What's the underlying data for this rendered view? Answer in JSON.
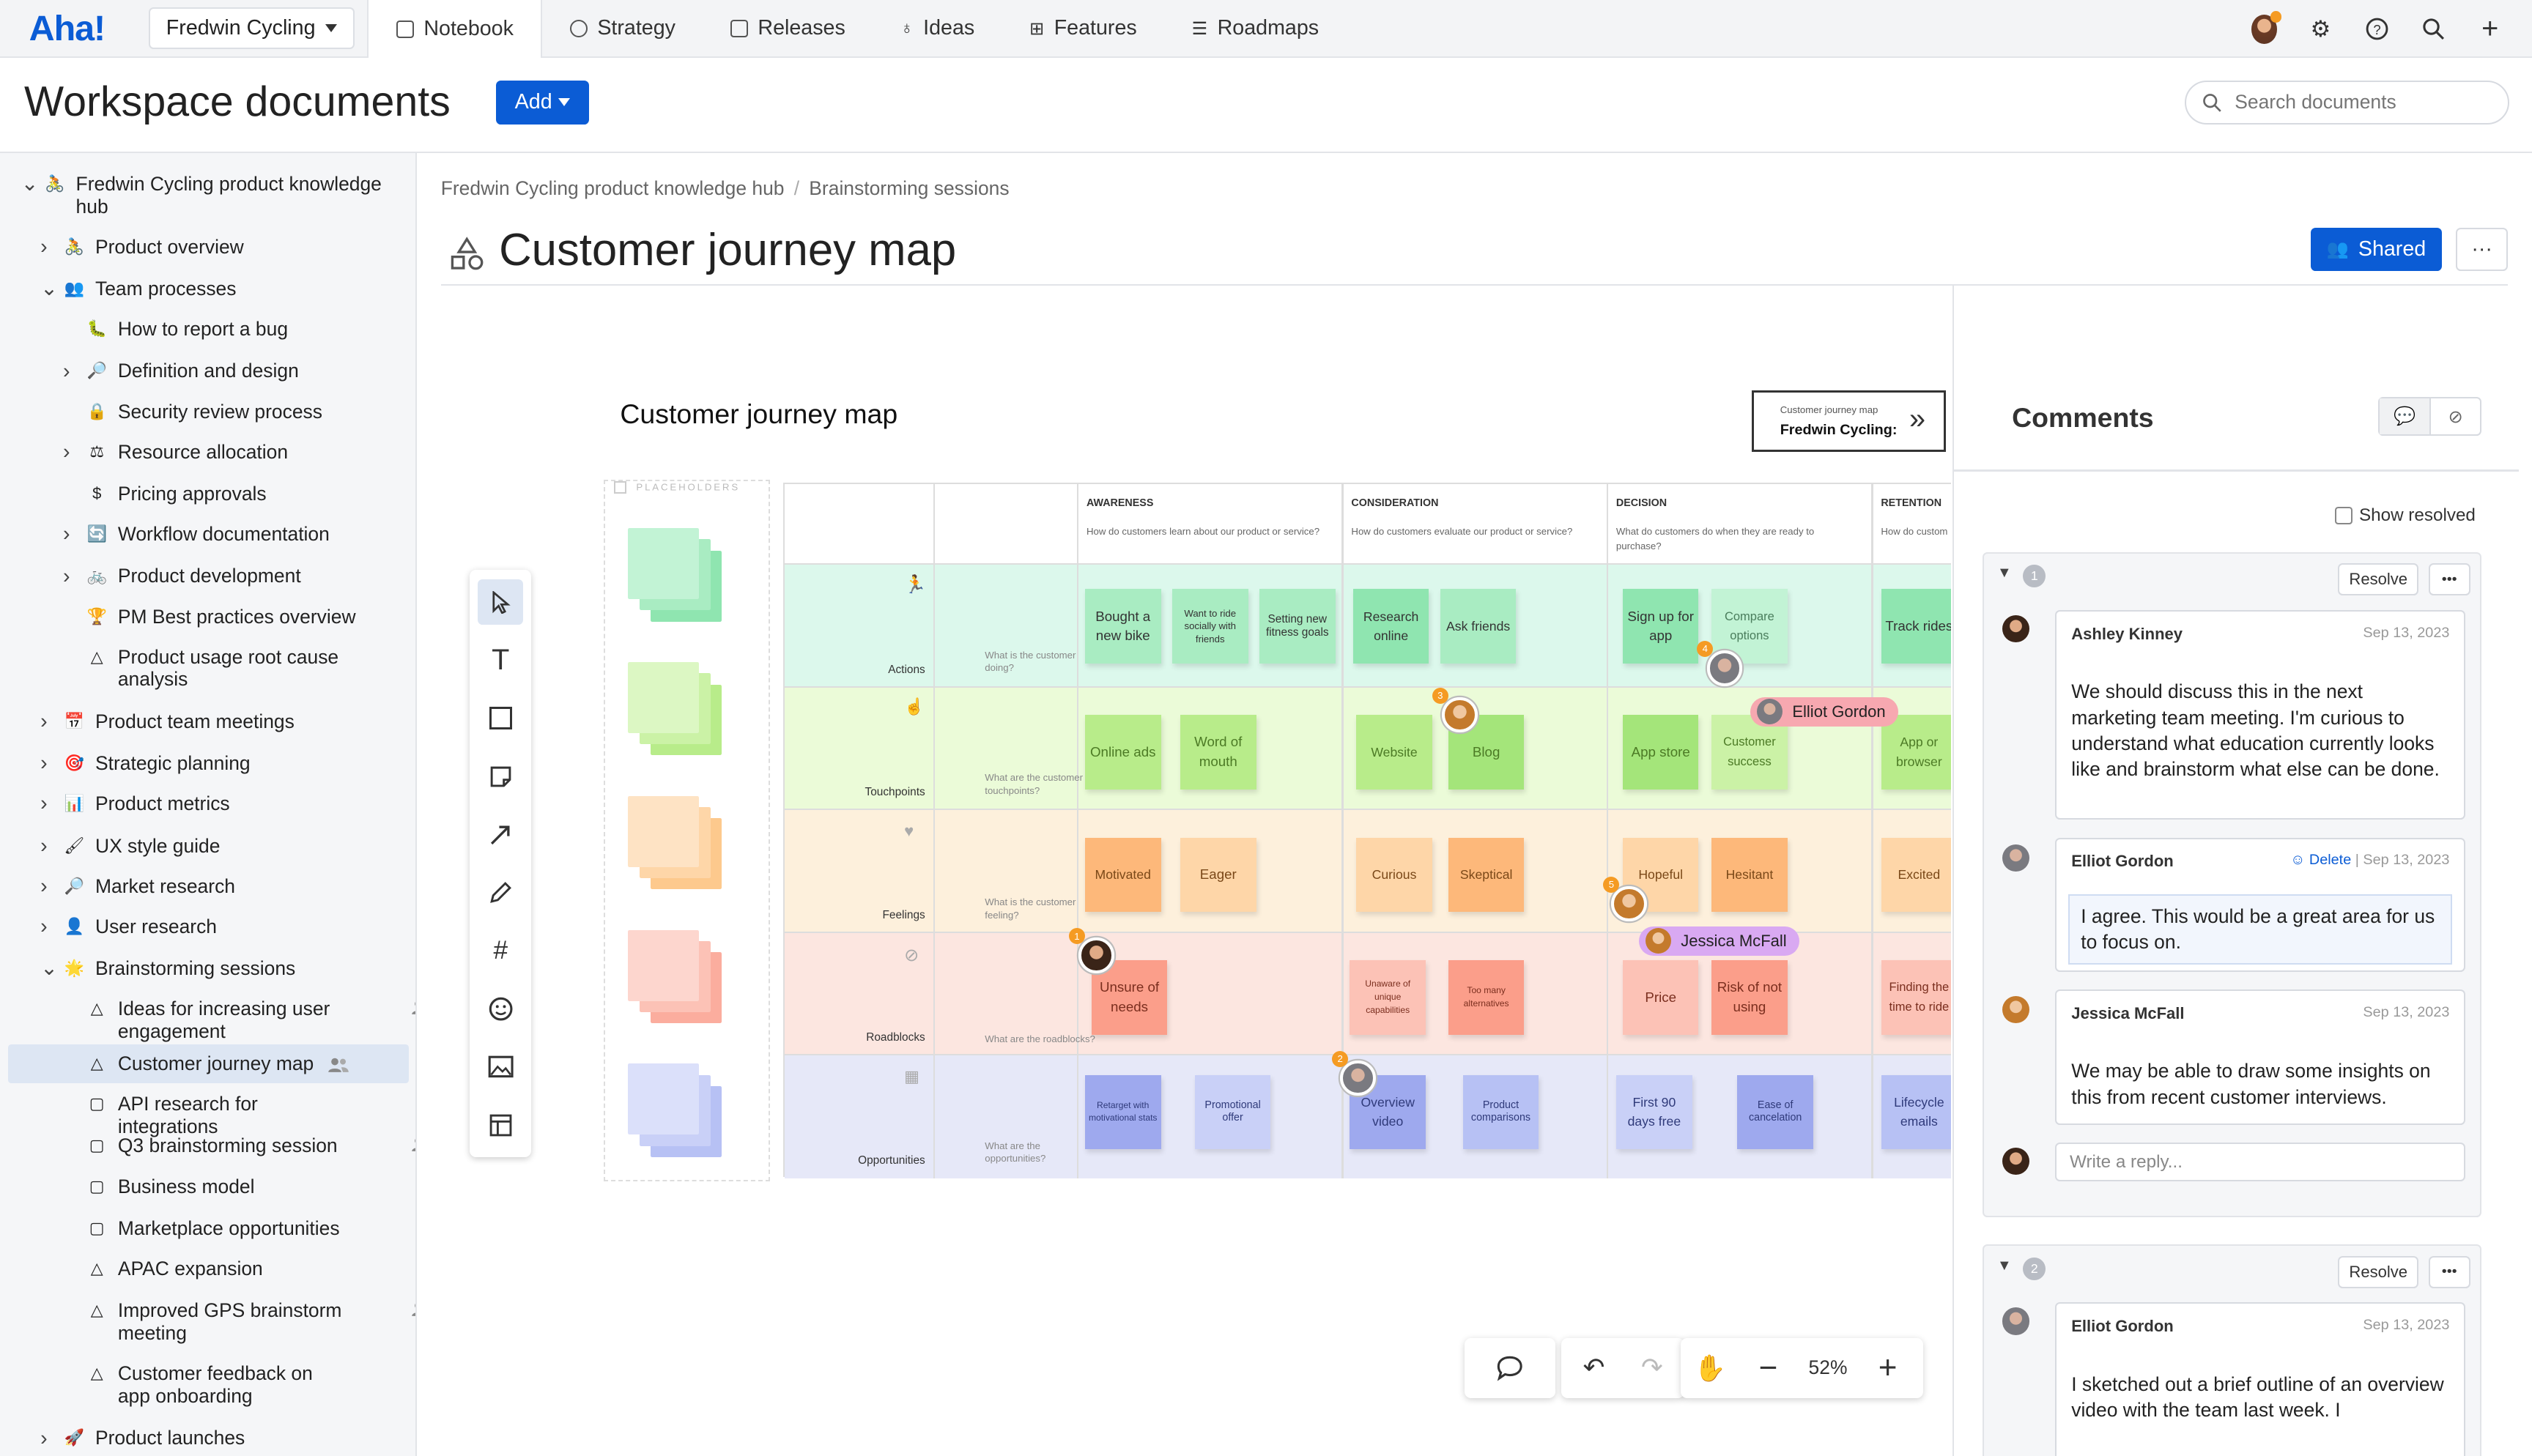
{
  "nav": {
    "logo": "Aha!",
    "workspace": "Fredwin Cycling",
    "tabs": [
      {
        "label": "Notebook"
      },
      {
        "label": "Strategy"
      },
      {
        "label": "Releases"
      },
      {
        "label": "Ideas"
      },
      {
        "label": "Features"
      },
      {
        "label": "Roadmaps"
      }
    ]
  },
  "header": {
    "title": "Workspace documents",
    "add_label": "Add",
    "search_placeholder": "Search documents"
  },
  "sidebar": {
    "items": [
      {
        "label": "Fredwin Cycling product knowledge hub",
        "chev": "v",
        "icon": "🚴"
      },
      {
        "label": "Product overview",
        "chev": ">",
        "icon": "🚴"
      },
      {
        "label": "Team processes",
        "chev": "v",
        "icon": "👥"
      },
      {
        "label": "How to report a bug",
        "chev": "",
        "icon": "🐛"
      },
      {
        "label": "Definition and design",
        "chev": ">",
        "icon": "🔎"
      },
      {
        "label": "Security review process",
        "chev": "",
        "icon": "🔒"
      },
      {
        "label": "Resource allocation",
        "chev": ">",
        "icon": "⚖"
      },
      {
        "label": "Pricing approvals",
        "chev": "",
        "icon": "$"
      },
      {
        "label": "Workflow documentation",
        "chev": ">",
        "icon": "🔄"
      },
      {
        "label": "Product development",
        "chev": ">",
        "icon": "🚲"
      },
      {
        "label": "PM Best practices overview",
        "chev": "",
        "icon": "🏆"
      },
      {
        "label": "Product usage root cause analysis",
        "chev": "",
        "icon": "△"
      },
      {
        "label": "Product team meetings",
        "chev": ">",
        "icon": "📅"
      },
      {
        "label": "Strategic planning",
        "chev": ">",
        "icon": "🎯"
      },
      {
        "label": "Product metrics",
        "chev": ">",
        "icon": "📊"
      },
      {
        "label": "UX style guide",
        "chev": ">",
        "icon": "🖌"
      },
      {
        "label": "Market research",
        "chev": ">",
        "icon": "🔎"
      },
      {
        "label": "User research",
        "chev": ">",
        "icon": "👤"
      },
      {
        "label": "Brainstorming sessions",
        "chev": "v",
        "icon": "🌟"
      },
      {
        "label": "Ideas for increasing user engagement",
        "chev": "",
        "icon": "△"
      },
      {
        "label": "Customer journey map",
        "chev": "",
        "icon": "△"
      },
      {
        "label": "API research for integrations",
        "chev": "",
        "icon": "▢"
      },
      {
        "label": "Q3 brainstorming session",
        "chev": "",
        "icon": "▢"
      },
      {
        "label": "Business model",
        "chev": "",
        "icon": "▢"
      },
      {
        "label": "Marketplace opportunities",
        "chev": "",
        "icon": "▢"
      },
      {
        "label": "APAC expansion",
        "chev": "",
        "icon": "△"
      },
      {
        "label": "Improved GPS brainstorm meeting",
        "chev": "",
        "icon": "△"
      },
      {
        "label": "Customer feedback on app onboarding",
        "chev": "",
        "icon": "△"
      },
      {
        "label": "Product launches",
        "chev": ">",
        "icon": "🚀"
      }
    ]
  },
  "breadcrumb": [
    "Fredwin Cycling product knowledge hub",
    "Brainstorming sessions"
  ],
  "doc": {
    "title": "Customer journey map",
    "shared_label": "Shared",
    "more": "···"
  },
  "board": {
    "title": "Customer journey map",
    "minimap_small": "Customer journey map",
    "minimap_big": "Fredwin Cycling:",
    "placeholders": "PLACEHOLDERS",
    "columns": [
      {
        "h": "AWARENESS",
        "q": "How do customers learn about our product or service?"
      },
      {
        "h": "CONSIDERATION",
        "q": "How do customers evaluate our product or service?"
      },
      {
        "h": "DECISION",
        "q": "What do customers do when they are ready to purchase?"
      },
      {
        "h": "RETENTION",
        "q": "How do custom"
      }
    ],
    "rows": [
      {
        "label": "Actions",
        "q": "What is the customer doing?"
      },
      {
        "label": "Touchpoints",
        "q": "What are the customer touchpoints?"
      },
      {
        "label": "Feelings",
        "q": "What is the customer feeling?"
      },
      {
        "label": "Roadblocks",
        "q": "What are the roadblocks?"
      },
      {
        "label": "Opportunities",
        "q": "What are the opportunities?"
      }
    ],
    "notes": [
      "Bought a new bike",
      "Want to ride socially with friends",
      "Setting new fitness goals",
      "Research online",
      "Ask friends",
      "Sign up for app",
      "Compare options",
      "Track rides",
      "Online ads",
      "Word of mouth",
      "Website",
      "Blog",
      "App store",
      "Customer success",
      "App or browser",
      "Motivated",
      "Eager",
      "Curious",
      "Skeptical",
      "Hopeful",
      "Hesitant",
      "Excited",
      "Unsure of needs",
      "Unaware of unique capabilities",
      "Too many alternatives",
      "Price",
      "Risk of not using",
      "Finding the time to ride",
      "Retarget with motivational stats",
      "Promotional offer",
      "Overview video",
      "Product comparisons",
      "First 90 days free",
      "Ease of cancelation",
      "Lifecycle emails"
    ],
    "cursors": [
      "Elliot Gordon",
      "Jessica McFall"
    ],
    "badges": [
      "1",
      "2",
      "3",
      "4",
      "5"
    ],
    "zoom": "52%"
  },
  "comments": {
    "title": "Comments",
    "show_resolved": "Show resolved",
    "resolve": "Resolve",
    "threads": [
      {
        "num": "1",
        "items": [
          {
            "author": "Ashley Kinney",
            "date": "Sep 13, 2023",
            "text": "We should discuss this in the next marketing team meeting. I'm curious to understand what education currently looks like and brainstorm what else can be done."
          },
          {
            "author": "Elliot Gordon",
            "date": "Sep 13, 2023",
            "delete": "Delete",
            "text": "I agree. This would be a great area for us to focus on."
          },
          {
            "author": "Jessica McFall",
            "date": "Sep 13, 2023",
            "text": "We may be able to draw some insights on this from recent customer interviews."
          }
        ],
        "reply_placeholder": "Write a reply..."
      },
      {
        "num": "2",
        "items": [
          {
            "author": "Elliot Gordon",
            "date": "Sep 13, 2023",
            "text": "I sketched out a brief outline of an overview video with the team last week. I"
          }
        ]
      }
    ]
  }
}
